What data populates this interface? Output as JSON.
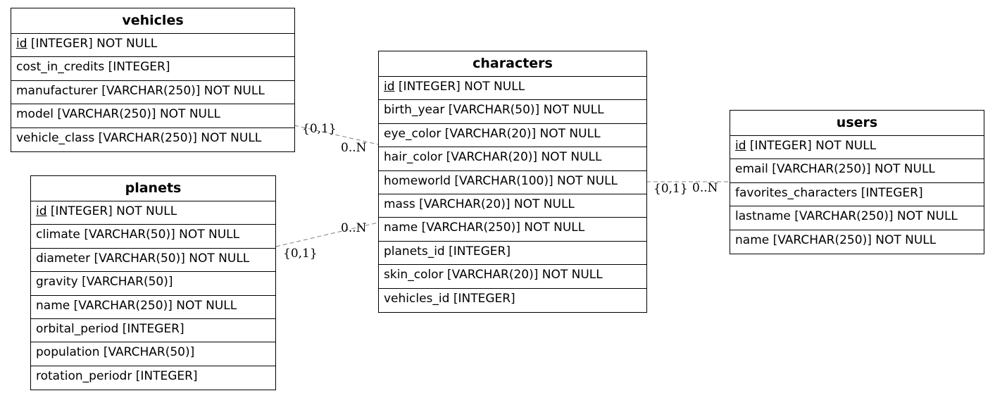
{
  "tables": {
    "vehicles": {
      "title": "vehicles",
      "fields": [
        {
          "name": "id",
          "type": "[INTEGER] NOT NULL",
          "pk": true
        },
        {
          "name": "cost_in_credits",
          "type": "[INTEGER]",
          "pk": false
        },
        {
          "name": "manufacturer",
          "type": "[VARCHAR(250)] NOT NULL",
          "pk": false
        },
        {
          "name": "model",
          "type": "[VARCHAR(250)] NOT NULL",
          "pk": false
        },
        {
          "name": "vehicle_class",
          "type": "[VARCHAR(250)] NOT NULL",
          "pk": false
        }
      ]
    },
    "planets": {
      "title": "planets",
      "fields": [
        {
          "name": "id",
          "type": "[INTEGER] NOT NULL",
          "pk": true
        },
        {
          "name": "climate",
          "type": "[VARCHAR(50)] NOT NULL",
          "pk": false
        },
        {
          "name": "diameter",
          "type": "[VARCHAR(50)] NOT NULL",
          "pk": false
        },
        {
          "name": "gravity",
          "type": "[VARCHAR(50)]",
          "pk": false
        },
        {
          "name": "name",
          "type": "[VARCHAR(250)] NOT NULL",
          "pk": false
        },
        {
          "name": "orbital_period",
          "type": "[INTEGER]",
          "pk": false
        },
        {
          "name": "population",
          "type": "[VARCHAR(50)]",
          "pk": false
        },
        {
          "name": "rotation_periodr",
          "type": "[INTEGER]",
          "pk": false
        }
      ]
    },
    "characters": {
      "title": "characters",
      "fields": [
        {
          "name": "id",
          "type": "[INTEGER] NOT NULL",
          "pk": true
        },
        {
          "name": "birth_year",
          "type": "[VARCHAR(50)] NOT NULL",
          "pk": false
        },
        {
          "name": "eye_color",
          "type": "[VARCHAR(20)] NOT NULL",
          "pk": false
        },
        {
          "name": "hair_color",
          "type": "[VARCHAR(20)] NOT NULL",
          "pk": false
        },
        {
          "name": "homeworld",
          "type": "[VARCHAR(100)] NOT NULL",
          "pk": false
        },
        {
          "name": "mass",
          "type": "[VARCHAR(20)] NOT NULL",
          "pk": false
        },
        {
          "name": "name",
          "type": "[VARCHAR(250)] NOT NULL",
          "pk": false
        },
        {
          "name": "planets_id",
          "type": "[INTEGER]",
          "pk": false
        },
        {
          "name": "skin_color",
          "type": "[VARCHAR(20)] NOT NULL",
          "pk": false
        },
        {
          "name": "vehicles_id",
          "type": "[INTEGER]",
          "pk": false
        }
      ]
    },
    "users": {
      "title": "users",
      "fields": [
        {
          "name": "id",
          "type": "[INTEGER] NOT NULL",
          "pk": true
        },
        {
          "name": "email",
          "type": "[VARCHAR(250)] NOT NULL",
          "pk": false
        },
        {
          "name": "favorites_characters",
          "type": "[INTEGER]",
          "pk": false
        },
        {
          "name": "lastname",
          "type": "[VARCHAR(250)] NOT NULL",
          "pk": false
        },
        {
          "name": "name",
          "type": "[VARCHAR(250)] NOT NULL",
          "pk": false
        }
      ]
    }
  },
  "relations": [
    {
      "from": "vehicles",
      "to": "characters",
      "from_card": "{0,1}",
      "to_card": "0..N"
    },
    {
      "from": "planets",
      "to": "characters",
      "from_card": "{0,1}",
      "to_card": "0..N"
    },
    {
      "from": "characters",
      "to": "users",
      "from_card": "{0,1}",
      "to_card": "0..N"
    }
  ]
}
